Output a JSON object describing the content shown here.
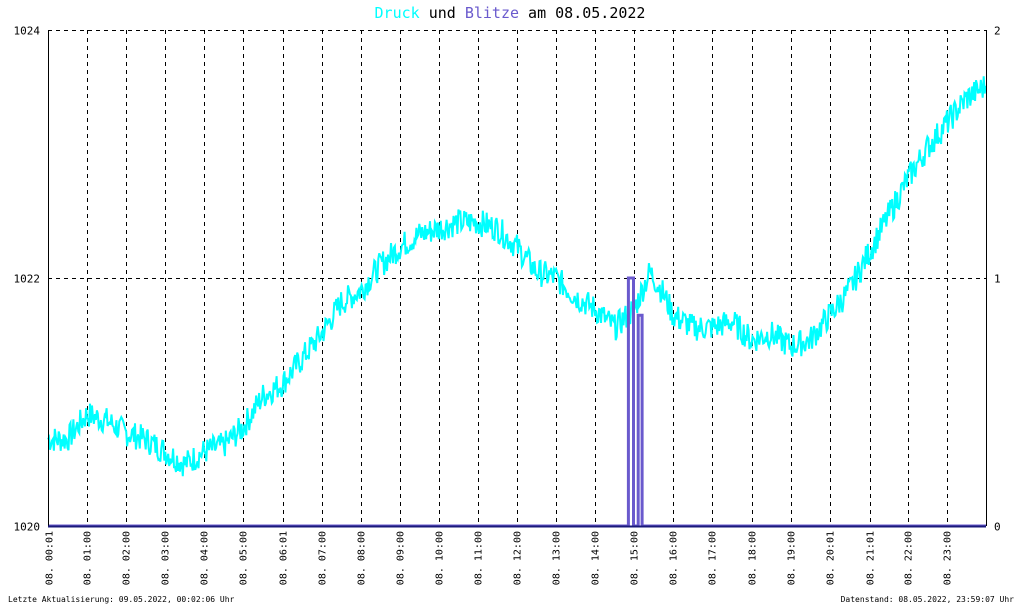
{
  "title": {
    "parts": [
      {
        "text": "Druck",
        "color": "#00ffff"
      },
      {
        "text": " und ",
        "color": "#000000"
      },
      {
        "text": "Blitze",
        "color": "#6a5acd"
      },
      {
        "text": " am 08.05.2022",
        "color": "#000000"
      }
    ]
  },
  "footer": {
    "left": "Letzte Aktualisierung: 09.05.2022, 00:02:06 Uhr",
    "right": "Datenstand: 08.05.2022, 23:59:07 Uhr"
  },
  "chart_data": {
    "type": "line",
    "title": "Druck und Blitze am 08.05.2022",
    "grid": true,
    "x_range_hours": [
      0,
      24
    ],
    "x_tick_labels": [
      {
        "hour": 0.02,
        "label": "08. 00:01"
      },
      {
        "hour": 1,
        "label": "08. 01:00"
      },
      {
        "hour": 2,
        "label": "08. 02:00"
      },
      {
        "hour": 3,
        "label": "08. 03:00"
      },
      {
        "hour": 4,
        "label": "08. 04:00"
      },
      {
        "hour": 5,
        "label": "08. 05:00"
      },
      {
        "hour": 6.02,
        "label": "08. 06:01"
      },
      {
        "hour": 7,
        "label": "08. 07:00"
      },
      {
        "hour": 8,
        "label": "08. 08:00"
      },
      {
        "hour": 9,
        "label": "08. 09:00"
      },
      {
        "hour": 10,
        "label": "08. 10:00"
      },
      {
        "hour": 11,
        "label": "08. 11:00"
      },
      {
        "hour": 12,
        "label": "08. 12:00"
      },
      {
        "hour": 13,
        "label": "08. 13:00"
      },
      {
        "hour": 14,
        "label": "08. 14:00"
      },
      {
        "hour": 15,
        "label": "08. 15:00"
      },
      {
        "hour": 16,
        "label": "08. 16:00"
      },
      {
        "hour": 17,
        "label": "08. 17:00"
      },
      {
        "hour": 18,
        "label": "08. 18:00"
      },
      {
        "hour": 19,
        "label": "08. 19:00"
      },
      {
        "hour": 20.02,
        "label": "08. 20:01"
      },
      {
        "hour": 21.02,
        "label": "08. 21:01"
      },
      {
        "hour": 22,
        "label": "08. 22:00"
      },
      {
        "hour": 23,
        "label": "08. 23:00"
      }
    ],
    "y_left": {
      "range": [
        1020,
        1024
      ],
      "ticks": [
        1020,
        1022,
        1024
      ]
    },
    "y_right": {
      "range": [
        0,
        2
      ],
      "ticks": [
        0,
        1,
        2
      ]
    },
    "series": [
      {
        "name": "Druck",
        "axis": "left",
        "color": "#00ffff",
        "points": [
          [
            0.0,
            1020.7
          ],
          [
            0.5,
            1020.7
          ],
          [
            1.0,
            1020.9
          ],
          [
            1.5,
            1020.85
          ],
          [
            2.0,
            1020.75
          ],
          [
            2.5,
            1020.7
          ],
          [
            3.0,
            1020.6
          ],
          [
            3.5,
            1020.5
          ],
          [
            4.0,
            1020.6
          ],
          [
            4.5,
            1020.65
          ],
          [
            5.0,
            1020.8
          ],
          [
            5.5,
            1021.05
          ],
          [
            6.0,
            1021.15
          ],
          [
            6.5,
            1021.35
          ],
          [
            7.0,
            1021.55
          ],
          [
            7.5,
            1021.8
          ],
          [
            8.0,
            1021.9
          ],
          [
            8.5,
            1022.1
          ],
          [
            9.0,
            1022.25
          ],
          [
            9.5,
            1022.35
          ],
          [
            10.0,
            1022.4
          ],
          [
            10.5,
            1022.45
          ],
          [
            11.0,
            1022.45
          ],
          [
            11.5,
            1022.4
          ],
          [
            12.0,
            1022.25
          ],
          [
            12.5,
            1022.05
          ],
          [
            13.0,
            1022.0
          ],
          [
            13.5,
            1021.85
          ],
          [
            14.0,
            1021.75
          ],
          [
            14.5,
            1021.6
          ],
          [
            15.0,
            1021.75
          ],
          [
            15.4,
            1022.05
          ],
          [
            15.7,
            1021.9
          ],
          [
            16.0,
            1021.7
          ],
          [
            16.5,
            1021.6
          ],
          [
            17.0,
            1021.6
          ],
          [
            17.5,
            1021.65
          ],
          [
            18.0,
            1021.5
          ],
          [
            18.5,
            1021.55
          ],
          [
            19.0,
            1021.45
          ],
          [
            19.5,
            1021.5
          ],
          [
            20.0,
            1021.7
          ],
          [
            20.5,
            1021.9
          ],
          [
            21.0,
            1022.2
          ],
          [
            21.5,
            1022.5
          ],
          [
            22.0,
            1022.8
          ],
          [
            22.5,
            1023.05
          ],
          [
            23.0,
            1023.25
          ],
          [
            23.5,
            1023.45
          ],
          [
            23.99,
            1023.55
          ]
        ]
      },
      {
        "name": "Blitze",
        "axis": "right",
        "color": "#6a5acd",
        "points": [
          [
            0,
            0
          ],
          [
            14.85,
            0
          ],
          [
            14.85,
            1
          ],
          [
            14.98,
            1
          ],
          [
            14.98,
            0
          ],
          [
            15.1,
            0
          ],
          [
            15.1,
            0.85
          ],
          [
            15.2,
            0.85
          ],
          [
            15.2,
            0
          ],
          [
            24,
            0
          ]
        ]
      }
    ]
  }
}
